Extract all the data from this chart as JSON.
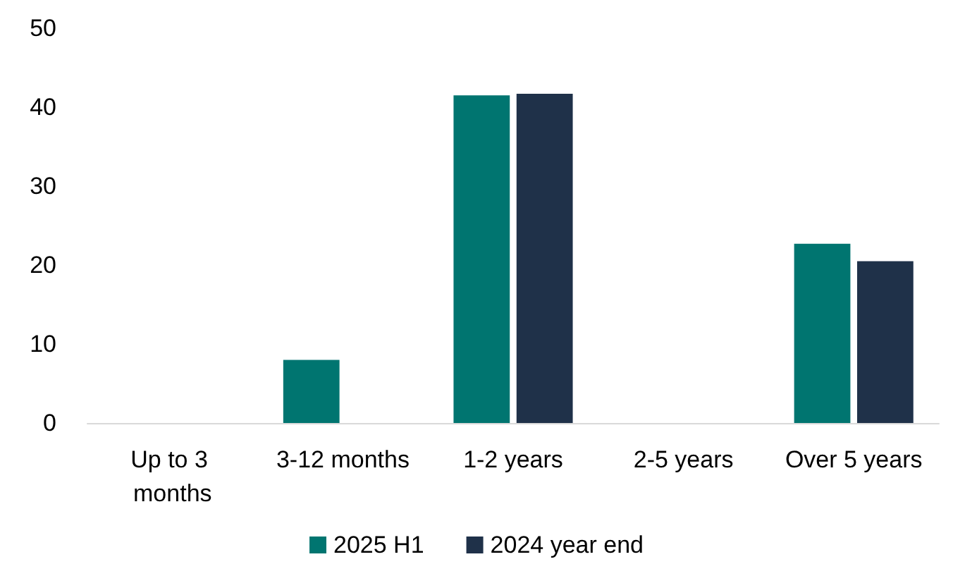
{
  "chart_data": {
    "type": "bar",
    "categories": [
      "Up to 3 months",
      "3-12 months",
      "1-2 years",
      "2-5 years",
      "Over 5 years"
    ],
    "series": [
      {
        "name": "2025 H1",
        "color": "#007570",
        "values": [
          0,
          8,
          41.5,
          0,
          22.7
        ]
      },
      {
        "name": "2024 year end",
        "color": "#1f3149",
        "values": [
          0,
          0,
          41.7,
          0,
          20.5
        ]
      }
    ],
    "ylim": [
      0,
      50
    ],
    "yticks": [
      0,
      10,
      20,
      30,
      40,
      50
    ],
    "grid": false,
    "legend": "bottom"
  }
}
